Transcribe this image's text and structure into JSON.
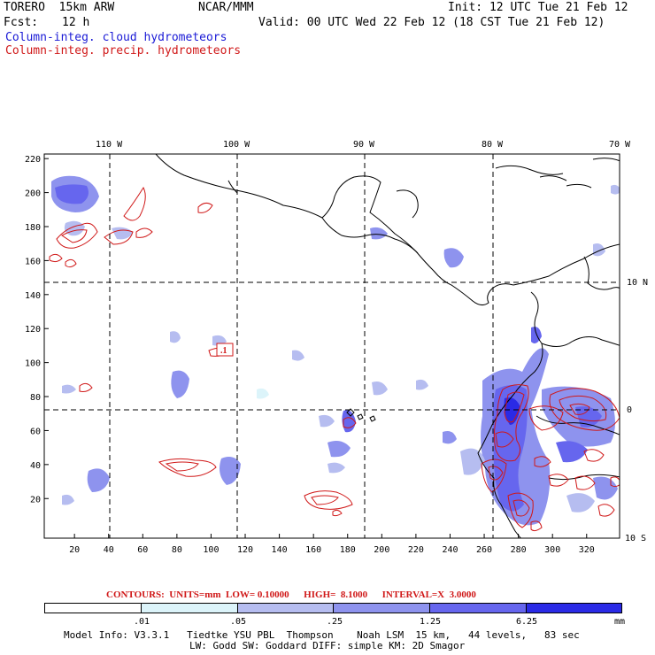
{
  "header": {
    "model": "TORERO  15km ARW",
    "org": "NCAR/MMM",
    "init": "Init: 12 UTC Tue 21 Feb 12",
    "fcst_label": "Fcst:",
    "fcst_value": "12 h",
    "valid": "Valid: 00 UTC Wed 22 Feb 12 (18 CST Tue 21 Feb 12)",
    "field1": "Column-integ. cloud hydrometeors",
    "field2": "Column-integ. precip. hydrometeors"
  },
  "colors": {
    "cloud_field": "#1a1ad6",
    "precip_contour": "#d01818",
    "fill_levels": [
      "#ffffff",
      "#dcf4fa",
      "#b6bdf0",
      "#8e93ee",
      "#6666ee",
      "#2a2ae6"
    ]
  },
  "map": {
    "top_lon_labels": [
      "110 W",
      "100 W",
      "90 W",
      "80 W",
      "70 W"
    ],
    "right_lat_labels": [
      "10 N",
      "0",
      "10 S"
    ],
    "left_y_ticks": [
      "220",
      "200",
      "180",
      "160",
      "140",
      "120",
      "100",
      "80",
      "60",
      "40",
      "20"
    ],
    "bottom_x_ticks": [
      "20",
      "40",
      "60",
      "80",
      "100",
      "120",
      "140",
      "160",
      "180",
      "200",
      "220",
      "240",
      "260",
      "280",
      "300",
      "320"
    ],
    "contour_label": ".1"
  },
  "contours_info": {
    "text": "CONTOURS:  UNITS=mm  LOW= 0.10000      HIGH=  8.1000      INTERVAL=X  3.0000"
  },
  "colorbar": {
    "thresholds": [
      ".01",
      ".05",
      ".25",
      "1.25",
      "6.25"
    ],
    "units": "mm"
  },
  "footer": {
    "line1": "Model Info: V3.3.1   Tiedtke YSU PBL  Thompson    Noah LSM  15 km,   44 levels,   83 sec",
    "line2": "LW: Godd SW: Goddard DIFF: simple KM: 2D Smagor"
  }
}
